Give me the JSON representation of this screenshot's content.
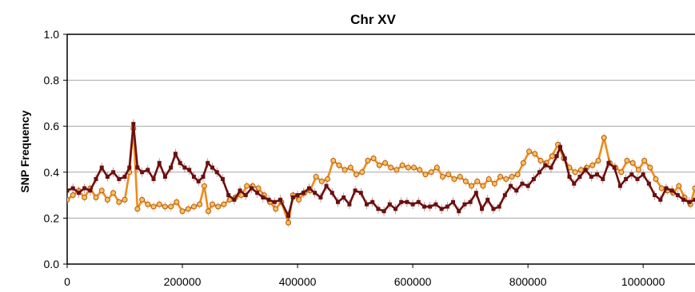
{
  "chart_data": {
    "type": "line",
    "title": "Chr XV",
    "xlabel": "",
    "ylabel": "SNP Frequency",
    "xlim": [
      0,
      1090000
    ],
    "ylim": [
      0,
      1.0
    ],
    "xticks": [
      0,
      200000,
      400000,
      600000,
      800000,
      1000000
    ],
    "xtick_labels": [
      "0",
      "200000",
      "400000",
      "600000",
      "800000",
      "1000000"
    ],
    "yticks": [
      0,
      0.2,
      0.4,
      0.6,
      0.8,
      1.0
    ],
    "ytick_labels": [
      "0.0",
      "0.2",
      "0.4",
      "0.6",
      "0.8",
      "1.0"
    ],
    "grid": true,
    "series": [
      {
        "color": "#6b0f0f",
        "marker": "square",
        "points": [
          [
            0,
            0.32
          ],
          [
            10000,
            0.33
          ],
          [
            20000,
            0.31
          ],
          [
            30000,
            0.33
          ],
          [
            40000,
            0.32
          ],
          [
            50000,
            0.37
          ],
          [
            60000,
            0.42
          ],
          [
            70000,
            0.38
          ],
          [
            80000,
            0.4
          ],
          [
            90000,
            0.37
          ],
          [
            100000,
            0.38
          ],
          [
            108000,
            0.42
          ],
          [
            115000,
            0.61
          ],
          [
            122000,
            0.42
          ],
          [
            130000,
            0.4
          ],
          [
            140000,
            0.41
          ],
          [
            150000,
            0.37
          ],
          [
            160000,
            0.44
          ],
          [
            170000,
            0.38
          ],
          [
            180000,
            0.42
          ],
          [
            188000,
            0.48
          ],
          [
            196000,
            0.44
          ],
          [
            204000,
            0.42
          ],
          [
            212000,
            0.41
          ],
          [
            220000,
            0.38
          ],
          [
            228000,
            0.36
          ],
          [
            236000,
            0.38
          ],
          [
            244000,
            0.44
          ],
          [
            252000,
            0.42
          ],
          [
            260000,
            0.4
          ],
          [
            270000,
            0.37
          ],
          [
            280000,
            0.3
          ],
          [
            290000,
            0.28
          ],
          [
            300000,
            0.32
          ],
          [
            310000,
            0.3
          ],
          [
            320000,
            0.33
          ],
          [
            330000,
            0.31
          ],
          [
            340000,
            0.29
          ],
          [
            350000,
            0.28
          ],
          [
            360000,
            0.27
          ],
          [
            370000,
            0.28
          ],
          [
            384000,
            0.21
          ],
          [
            392000,
            0.29
          ],
          [
            400000,
            0.3
          ],
          [
            410000,
            0.31
          ],
          [
            420000,
            0.33
          ],
          [
            430000,
            0.31
          ],
          [
            440000,
            0.29
          ],
          [
            450000,
            0.34
          ],
          [
            460000,
            0.31
          ],
          [
            470000,
            0.27
          ],
          [
            480000,
            0.29
          ],
          [
            490000,
            0.26
          ],
          [
            500000,
            0.32
          ],
          [
            510000,
            0.31
          ],
          [
            520000,
            0.26
          ],
          [
            530000,
            0.27
          ],
          [
            540000,
            0.24
          ],
          [
            550000,
            0.23
          ],
          [
            560000,
            0.26
          ],
          [
            570000,
            0.24
          ],
          [
            580000,
            0.27
          ],
          [
            590000,
            0.27
          ],
          [
            600000,
            0.26
          ],
          [
            610000,
            0.27
          ],
          [
            620000,
            0.25
          ],
          [
            630000,
            0.25
          ],
          [
            640000,
            0.26
          ],
          [
            650000,
            0.24
          ],
          [
            660000,
            0.25
          ],
          [
            670000,
            0.27
          ],
          [
            680000,
            0.23
          ],
          [
            690000,
            0.26
          ],
          [
            700000,
            0.27
          ],
          [
            710000,
            0.31
          ],
          [
            720000,
            0.24
          ],
          [
            730000,
            0.28
          ],
          [
            740000,
            0.24
          ],
          [
            750000,
            0.25
          ],
          [
            760000,
            0.3
          ],
          [
            770000,
            0.34
          ],
          [
            780000,
            0.32
          ],
          [
            790000,
            0.35
          ],
          [
            800000,
            0.34
          ],
          [
            810000,
            0.37
          ],
          [
            820000,
            0.4
          ],
          [
            830000,
            0.43
          ],
          [
            840000,
            0.42
          ],
          [
            850000,
            0.47
          ],
          [
            856000,
            0.51
          ],
          [
            864000,
            0.46
          ],
          [
            872000,
            0.38
          ],
          [
            880000,
            0.35
          ],
          [
            890000,
            0.38
          ],
          [
            900000,
            0.41
          ],
          [
            910000,
            0.38
          ],
          [
            920000,
            0.39
          ],
          [
            930000,
            0.37
          ],
          [
            940000,
            0.44
          ],
          [
            950000,
            0.42
          ],
          [
            960000,
            0.34
          ],
          [
            970000,
            0.37
          ],
          [
            980000,
            0.39
          ],
          [
            990000,
            0.37
          ],
          [
            1000000,
            0.39
          ],
          [
            1010000,
            0.35
          ],
          [
            1020000,
            0.3
          ],
          [
            1030000,
            0.28
          ],
          [
            1040000,
            0.33
          ],
          [
            1050000,
            0.32
          ],
          [
            1060000,
            0.3
          ],
          [
            1070000,
            0.28
          ],
          [
            1080000,
            0.27
          ],
          [
            1090000,
            0.28
          ]
        ]
      },
      {
        "color": "#f08a1c",
        "marker": "circle",
        "points": [
          [
            0,
            0.28
          ],
          [
            10000,
            0.3
          ],
          [
            20000,
            0.32
          ],
          [
            30000,
            0.29
          ],
          [
            40000,
            0.33
          ],
          [
            50000,
            0.29
          ],
          [
            60000,
            0.32
          ],
          [
            70000,
            0.28
          ],
          [
            80000,
            0.31
          ],
          [
            90000,
            0.27
          ],
          [
            100000,
            0.28
          ],
          [
            108000,
            0.4
          ],
          [
            115000,
            0.59
          ],
          [
            122000,
            0.24
          ],
          [
            130000,
            0.28
          ],
          [
            140000,
            0.26
          ],
          [
            150000,
            0.25
          ],
          [
            160000,
            0.26
          ],
          [
            170000,
            0.25
          ],
          [
            180000,
            0.25
          ],
          [
            190000,
            0.27
          ],
          [
            200000,
            0.23
          ],
          [
            210000,
            0.24
          ],
          [
            220000,
            0.25
          ],
          [
            230000,
            0.26
          ],
          [
            238000,
            0.34
          ],
          [
            245000,
            0.23
          ],
          [
            252000,
            0.26
          ],
          [
            262000,
            0.25
          ],
          [
            272000,
            0.26
          ],
          [
            282000,
            0.28
          ],
          [
            292000,
            0.29
          ],
          [
            302000,
            0.3
          ],
          [
            312000,
            0.34
          ],
          [
            322000,
            0.34
          ],
          [
            332000,
            0.33
          ],
          [
            342000,
            0.3
          ],
          [
            352000,
            0.27
          ],
          [
            362000,
            0.24
          ],
          [
            372000,
            0.27
          ],
          [
            384000,
            0.18
          ],
          [
            392000,
            0.3
          ],
          [
            402000,
            0.28
          ],
          [
            412000,
            0.31
          ],
          [
            422000,
            0.32
          ],
          [
            432000,
            0.38
          ],
          [
            442000,
            0.36
          ],
          [
            452000,
            0.37
          ],
          [
            462000,
            0.45
          ],
          [
            472000,
            0.43
          ],
          [
            482000,
            0.41
          ],
          [
            492000,
            0.42
          ],
          [
            502000,
            0.39
          ],
          [
            512000,
            0.4
          ],
          [
            522000,
            0.45
          ],
          [
            532000,
            0.46
          ],
          [
            542000,
            0.43
          ],
          [
            552000,
            0.44
          ],
          [
            562000,
            0.42
          ],
          [
            572000,
            0.41
          ],
          [
            582000,
            0.43
          ],
          [
            592000,
            0.42
          ],
          [
            602000,
            0.42
          ],
          [
            612000,
            0.41
          ],
          [
            622000,
            0.39
          ],
          [
            632000,
            0.4
          ],
          [
            642000,
            0.42
          ],
          [
            652000,
            0.38
          ],
          [
            662000,
            0.39
          ],
          [
            672000,
            0.37
          ],
          [
            682000,
            0.38
          ],
          [
            692000,
            0.36
          ],
          [
            702000,
            0.34
          ],
          [
            712000,
            0.36
          ],
          [
            722000,
            0.34
          ],
          [
            732000,
            0.37
          ],
          [
            742000,
            0.35
          ],
          [
            752000,
            0.38
          ],
          [
            762000,
            0.37
          ],
          [
            772000,
            0.38
          ],
          [
            782000,
            0.39
          ],
          [
            792000,
            0.44
          ],
          [
            802000,
            0.49
          ],
          [
            812000,
            0.48
          ],
          [
            822000,
            0.45
          ],
          [
            832000,
            0.44
          ],
          [
            842000,
            0.47
          ],
          [
            852000,
            0.52
          ],
          [
            862000,
            0.46
          ],
          [
            872000,
            0.42
          ],
          [
            882000,
            0.4
          ],
          [
            892000,
            0.41
          ],
          [
            902000,
            0.42
          ],
          [
            912000,
            0.43
          ],
          [
            922000,
            0.45
          ],
          [
            932000,
            0.55
          ],
          [
            942000,
            0.44
          ],
          [
            952000,
            0.42
          ],
          [
            962000,
            0.4
          ],
          [
            972000,
            0.45
          ],
          [
            982000,
            0.44
          ],
          [
            992000,
            0.41
          ],
          [
            1002000,
            0.45
          ],
          [
            1012000,
            0.42
          ],
          [
            1022000,
            0.37
          ],
          [
            1032000,
            0.33
          ],
          [
            1042000,
            0.32
          ],
          [
            1052000,
            0.31
          ],
          [
            1062000,
            0.34
          ],
          [
            1072000,
            0.29
          ],
          [
            1082000,
            0.26
          ],
          [
            1090000,
            0.33
          ]
        ]
      }
    ]
  }
}
